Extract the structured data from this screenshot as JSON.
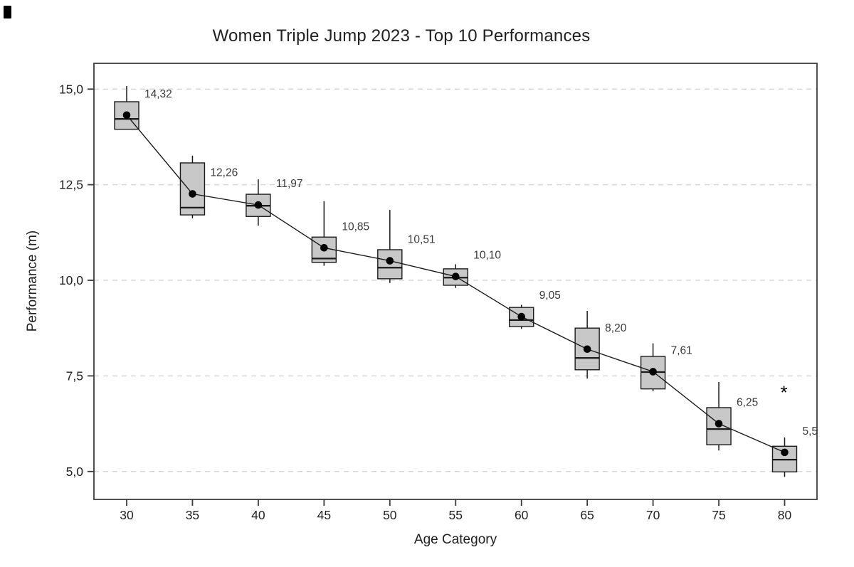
{
  "figure": {
    "title": "Women Triple Jump 2023 - Top 10 Performances",
    "x_axis_label": "Age Category",
    "y_axis_label": "Performance (m)",
    "y_tick_labels": [
      "15,0",
      "12,5",
      "10,0",
      "7,5",
      "5,0"
    ],
    "x_tick_labels": [
      "30",
      "35",
      "40",
      "45",
      "50",
      "55",
      "60",
      "65",
      "70",
      "75",
      "80"
    ]
  },
  "chart_data": {
    "type": "boxplot",
    "title": "Women Triple Jump 2023 - Top 10 Performances",
    "xlabel": "Age Category",
    "ylabel": "Performance (m)",
    "categories": [
      30,
      35,
      40,
      45,
      50,
      55,
      60,
      65,
      70,
      75,
      80
    ],
    "y_ticks": [
      15.0,
      12.5,
      10.0,
      7.5,
      5.0
    ],
    "ylim": [
      4.3,
      15.7
    ],
    "grid": "horizontal-dashed",
    "decimal_separator": ",",
    "legend": "none",
    "mean_labels": [
      "14,32",
      "12,26",
      "11,97",
      "10,85",
      "10,51",
      "10,10",
      "9,05",
      "8,20",
      "7,61",
      "6,25",
      "5,5"
    ],
    "series": [
      {
        "category": 30,
        "mean": 14.32,
        "mean_label": "14,32",
        "median": 14.22,
        "q1": 13.95,
        "q3": 14.67,
        "whisker_low": 13.95,
        "whisker_high": 15.08,
        "outliers": []
      },
      {
        "category": 35,
        "mean": 12.26,
        "mean_label": "12,26",
        "median": 11.9,
        "q1": 11.71,
        "q3": 13.07,
        "whisker_low": 11.62,
        "whisker_high": 13.26,
        "outliers": []
      },
      {
        "category": 40,
        "mean": 11.97,
        "mean_label": "11,97",
        "median": 11.95,
        "q1": 11.67,
        "q3": 12.25,
        "whisker_low": 11.43,
        "whisker_high": 12.64,
        "outliers": []
      },
      {
        "category": 45,
        "mean": 10.85,
        "mean_label": "10,85",
        "median": 10.57,
        "q1": 10.47,
        "q3": 11.13,
        "whisker_low": 10.38,
        "whisker_high": 12.07,
        "outliers": []
      },
      {
        "category": 50,
        "mean": 10.51,
        "mean_label": "10,51",
        "median": 10.33,
        "q1": 10.04,
        "q3": 10.8,
        "whisker_low": 9.93,
        "whisker_high": 11.84,
        "outliers": []
      },
      {
        "category": 55,
        "mean": 10.1,
        "mean_label": "10,10",
        "median": 10.07,
        "q1": 9.87,
        "q3": 10.3,
        "whisker_low": 9.8,
        "whisker_high": 10.42,
        "outliers": []
      },
      {
        "category": 60,
        "mean": 9.05,
        "mean_label": "9,05",
        "median": 8.96,
        "q1": 8.79,
        "q3": 9.29,
        "whisker_low": 8.73,
        "whisker_high": 9.36,
        "outliers": []
      },
      {
        "category": 65,
        "mean": 8.2,
        "mean_label": "8,20",
        "median": 7.97,
        "q1": 7.66,
        "q3": 8.75,
        "whisker_low": 7.43,
        "whisker_high": 9.2,
        "outliers": []
      },
      {
        "category": 70,
        "mean": 7.61,
        "mean_label": "7,61",
        "median": 7.6,
        "q1": 7.16,
        "q3": 8.01,
        "whisker_low": 7.1,
        "whisker_high": 8.35,
        "outliers": []
      },
      {
        "category": 75,
        "mean": 6.25,
        "mean_label": "6,25",
        "median": 6.11,
        "q1": 5.7,
        "q3": 6.67,
        "whisker_low": 5.55,
        "whisker_high": 7.34,
        "outliers": []
      },
      {
        "category": 80,
        "mean": 5.5,
        "mean_label": "5,5",
        "median": 5.31,
        "q1": 4.99,
        "q3": 5.66,
        "whisker_low": 4.86,
        "whisker_high": 5.89,
        "outliers": [
          7.13
        ]
      }
    ],
    "colors": {
      "background": "#ffffff",
      "box_fill": "#c8c8c8",
      "box_border": "#1a1a1a",
      "grid": "#d8d8d8",
      "axis": "#3c3c3c",
      "mean_point": "#000000",
      "mean_line": "#1a1a1a",
      "tick_text": "#1f1f1f",
      "label_text": "#3a3a3a"
    }
  }
}
